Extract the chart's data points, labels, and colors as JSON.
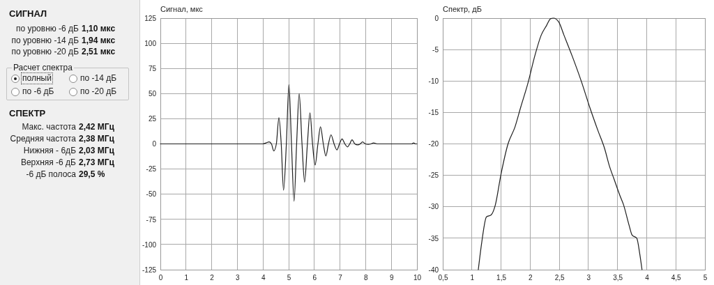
{
  "chart_data": [
    {
      "type": "other",
      "title": "СИГНАЛ",
      "annotations": [
        "по уровню -6 дБ",
        "1,10 мкс",
        "по уровню -14 дБ",
        "1,94 мкс",
        "по уровню -20 дБ",
        "2,51 мкс"
      ]
    },
    {
      "type": "other",
      "title": "Расчет спектра",
      "annotations": [
        "полный",
        "по -14 дБ",
        "по -6 дБ",
        "по -20 дБ"
      ]
    },
    {
      "type": "other",
      "title": "СПЕКТР",
      "annotations": [
        "Макс. частота",
        "2,42 МГц",
        "Средняя частота",
        "2,38 МГц",
        "Нижняя - 6дБ",
        "2,03 МГц",
        "Верхняя -6 дБ",
        "2,73 МГц",
        "-6 дБ полоса",
        "29,5 %"
      ]
    },
    {
      "type": "line",
      "title": "Сигнал, мкс",
      "color": "#1e1e1e",
      "xlim": [
        0,
        10
      ],
      "ylim": [
        -125,
        125
      ],
      "xticks": [
        0,
        1,
        2,
        3,
        4,
        5,
        6,
        7,
        8,
        9,
        10
      ],
      "yticks": [
        -125,
        -100,
        -75,
        -50,
        -25,
        0,
        25,
        50,
        75,
        100,
        125
      ],
      "grid": true,
      "x": [
        0,
        4.0,
        4.12,
        4.24,
        4.33,
        4.42,
        4.52,
        4.62,
        4.71,
        4.8,
        4.91,
        5.01,
        5.11,
        5.21,
        5.31,
        5.41,
        5.52,
        5.62,
        5.73,
        5.83,
        5.93,
        6.03,
        6.14,
        6.24,
        6.35,
        6.45,
        6.55,
        6.65,
        6.77,
        6.88,
        6.98,
        7.08,
        7.19,
        7.29,
        7.38,
        7.47,
        7.58,
        7.69,
        7.79,
        7.88,
        7.99,
        8.1,
        8.21,
        8.31,
        8.45,
        9.8,
        9.87,
        9.94,
        10
      ],
      "values": [
        0,
        0,
        1,
        2,
        0,
        -7,
        0,
        26,
        0,
        -46,
        0,
        59,
        0,
        -57,
        0,
        50,
        0,
        -38,
        0,
        31,
        0,
        -21,
        0,
        17,
        0,
        -12,
        0,
        9,
        0,
        -6,
        0,
        5,
        0,
        -3,
        0,
        4,
        0,
        -1,
        0,
        2,
        0,
        -0.5,
        0,
        1,
        0,
        0,
        1,
        0,
        0
      ]
    },
    {
      "type": "line",
      "title": "Спектр, дБ",
      "color": "#1e1e1e",
      "xlim": [
        0.5,
        5
      ],
      "ylim": [
        -40,
        0
      ],
      "xticks": [
        {
          "value": 0.5,
          "label": "0,5"
        },
        1,
        {
          "value": 1.5,
          "label": "1,5"
        },
        2,
        {
          "value": 2.5,
          "label": "2,5"
        },
        3,
        {
          "value": 3.5,
          "label": "3,5"
        },
        4,
        {
          "value": 4.5,
          "label": "4,5"
        },
        5
      ],
      "yticks": [
        -40,
        -35,
        -30,
        -25,
        -20,
        -15,
        -10,
        -5,
        0
      ],
      "grid": true,
      "x": [
        1.11,
        1.17,
        1.25,
        1.33,
        1.4,
        1.5,
        1.62,
        1.74,
        1.84,
        1.96,
        2.08,
        2.19,
        2.28,
        2.35,
        2.4,
        2.49,
        2.58,
        2.72,
        2.88,
        3.02,
        3.16,
        3.28,
        3.36,
        3.44,
        3.54,
        3.6,
        3.7,
        3.75,
        3.83,
        3.88,
        3.92
      ],
      "values": [
        -40,
        -35.6,
        -31.6,
        -31.3,
        -29.8,
        -24.8,
        -20,
        -17.3,
        -14.1,
        -10.4,
        -6,
        -2.7,
        -1.2,
        -0.1,
        0,
        -0.6,
        -2.7,
        -6,
        -10.1,
        -14.1,
        -17.8,
        -20.8,
        -23.5,
        -25.6,
        -28.2,
        -29.6,
        -33,
        -34.5,
        -35,
        -37.4,
        -40
      ]
    }
  ]
}
